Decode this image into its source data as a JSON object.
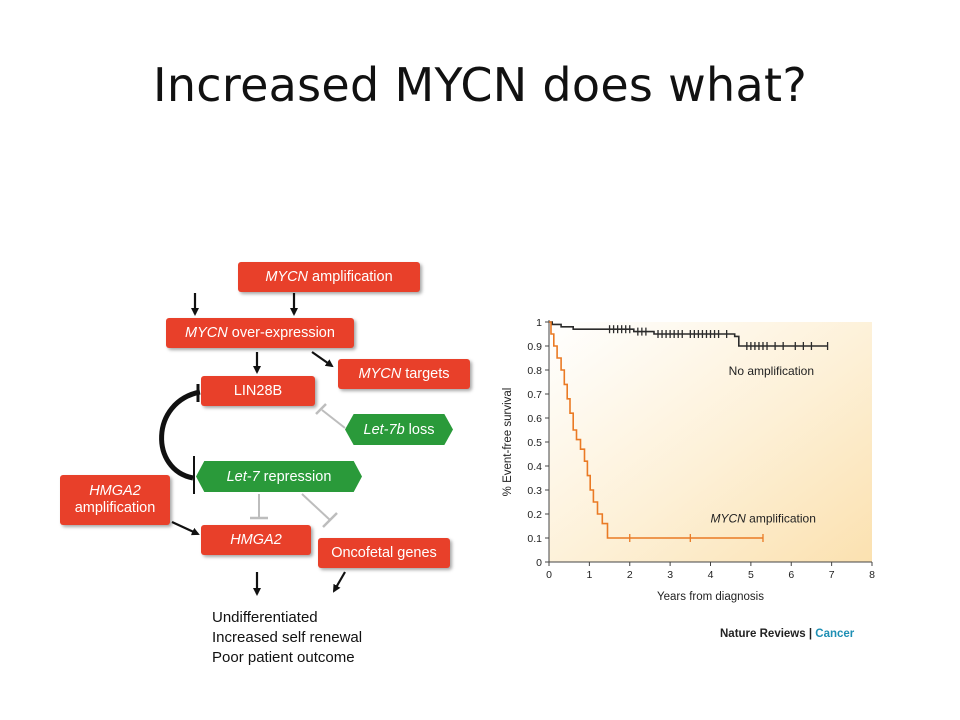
{
  "title": "Increased MYCN does what?",
  "diagram": {
    "mycn_amp_italic": "MYCN",
    "mycn_amp_rest": " amplification",
    "mycn_over_italic": "MYCN",
    "mycn_over_rest": " over-expression",
    "mycn_targets_italic": "MYCN",
    "mycn_targets_rest": " targets",
    "lin28b": "LIN28B",
    "let7b_italic": "Let-7b",
    "let7b_rest": " loss",
    "let7_italic": "Let-7",
    "let7_rest": " repression",
    "hmga2_amp_line1": "HMGA2",
    "hmga2_amp_line2": "amplification",
    "hmga2": "HMGA2",
    "oncofetal": "Oncofetal genes",
    "outcome_lines": [
      "Undifferentiated",
      "Increased self renewal",
      "Poor patient outcome"
    ],
    "colors": {
      "red_box": "#e8402a",
      "green_box": "#2a9a3a"
    }
  },
  "credit": {
    "left": "Nature Reviews",
    "separator": " | ",
    "right": "Cancer"
  },
  "chart_data": {
    "type": "line",
    "xlabel": "Years from diagnosis",
    "ylabel": "% Event-free survival",
    "xlim": [
      0,
      8
    ],
    "ylim": [
      0,
      1
    ],
    "xticks": [
      0,
      1,
      2,
      3,
      4,
      5,
      6,
      7,
      8
    ],
    "yticks": [
      0,
      0.1,
      0.2,
      0.3,
      0.4,
      0.5,
      0.6,
      0.7,
      0.8,
      0.9,
      1
    ],
    "ytick_labels": [
      "0",
      "0.1",
      "0.2",
      "0.3",
      "0.4",
      "0.5",
      "0.6",
      "0.7",
      "0.8",
      "0.9",
      "1"
    ],
    "series": [
      {
        "name": "No amplification",
        "color": "#2b2b2b",
        "points": [
          [
            0,
            1
          ],
          [
            0.08,
            1
          ],
          [
            0.08,
            0.99
          ],
          [
            0.3,
            0.99
          ],
          [
            0.3,
            0.98
          ],
          [
            0.6,
            0.98
          ],
          [
            0.6,
            0.97
          ],
          [
            2.1,
            0.97
          ],
          [
            2.1,
            0.96
          ],
          [
            2.6,
            0.96
          ],
          [
            2.6,
            0.95
          ],
          [
            4.6,
            0.95
          ],
          [
            4.6,
            0.94
          ],
          [
            4.7,
            0.94
          ],
          [
            4.7,
            0.9
          ],
          [
            6.9,
            0.9
          ]
        ],
        "censor_x": [
          1.5,
          1.6,
          1.7,
          1.8,
          1.9,
          2.0,
          2.2,
          2.3,
          2.4,
          2.7,
          2.8,
          2.9,
          3.0,
          3.1,
          3.2,
          3.3,
          3.5,
          3.6,
          3.7,
          3.8,
          3.9,
          4.0,
          4.1,
          4.2,
          4.4,
          4.9,
          5.0,
          5.1,
          5.2,
          5.3,
          5.4,
          5.6,
          5.8,
          6.1,
          6.3,
          6.5,
          6.9
        ],
        "censor_y": [
          0.97,
          0.97,
          0.97,
          0.97,
          0.97,
          0.97,
          0.96,
          0.96,
          0.96,
          0.95,
          0.95,
          0.95,
          0.95,
          0.95,
          0.95,
          0.95,
          0.95,
          0.95,
          0.95,
          0.95,
          0.95,
          0.95,
          0.95,
          0.95,
          0.95,
          0.9,
          0.9,
          0.9,
          0.9,
          0.9,
          0.9,
          0.9,
          0.9,
          0.9,
          0.9,
          0.9,
          0.9
        ]
      },
      {
        "name": "MYCN amplification",
        "color": "#ea7a24",
        "points": [
          [
            0,
            1
          ],
          [
            0.05,
            1
          ],
          [
            0.05,
            0.95
          ],
          [
            0.12,
            0.95
          ],
          [
            0.12,
            0.9
          ],
          [
            0.2,
            0.9
          ],
          [
            0.2,
            0.85
          ],
          [
            0.3,
            0.85
          ],
          [
            0.3,
            0.8
          ],
          [
            0.38,
            0.8
          ],
          [
            0.38,
            0.74
          ],
          [
            0.45,
            0.74
          ],
          [
            0.45,
            0.68
          ],
          [
            0.52,
            0.68
          ],
          [
            0.52,
            0.62
          ],
          [
            0.6,
            0.62
          ],
          [
            0.6,
            0.55
          ],
          [
            0.68,
            0.55
          ],
          [
            0.68,
            0.51
          ],
          [
            0.78,
            0.51
          ],
          [
            0.78,
            0.47
          ],
          [
            0.88,
            0.47
          ],
          [
            0.88,
            0.42
          ],
          [
            0.95,
            0.42
          ],
          [
            0.95,
            0.36
          ],
          [
            1.02,
            0.36
          ],
          [
            1.02,
            0.3
          ],
          [
            1.1,
            0.3
          ],
          [
            1.1,
            0.25
          ],
          [
            1.2,
            0.25
          ],
          [
            1.2,
            0.2
          ],
          [
            1.32,
            0.2
          ],
          [
            1.32,
            0.16
          ],
          [
            1.45,
            0.16
          ],
          [
            1.45,
            0.1
          ],
          [
            5.3,
            0.1
          ]
        ],
        "censor_x": [
          2.0,
          3.5,
          5.3
        ],
        "censor_y": [
          0.1,
          0.1,
          0.1
        ]
      }
    ]
  }
}
